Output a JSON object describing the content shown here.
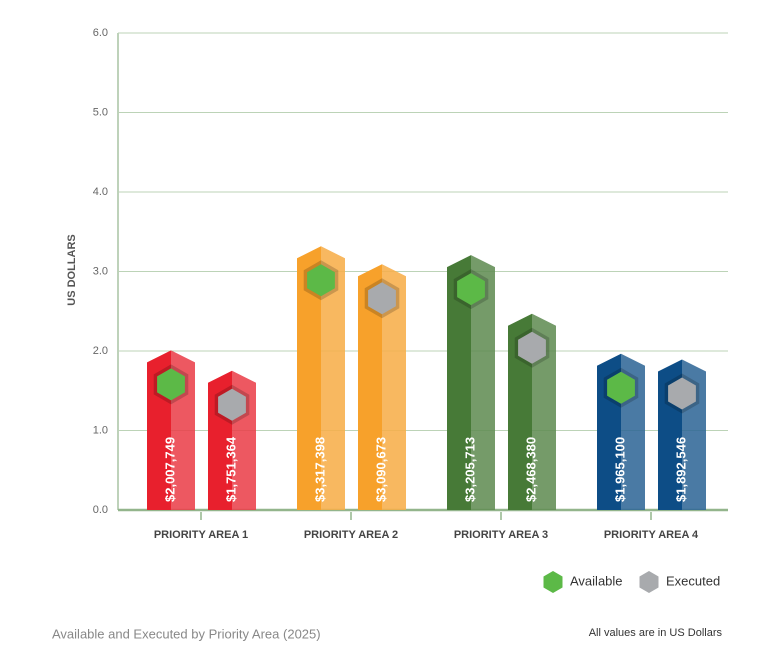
{
  "chart_data": {
    "type": "bar",
    "categories": [
      "PRIORITY AREA 1",
      "PRIORITY AREA 2",
      "PRIORITY AREA 3",
      "PRIORITY AREA 4"
    ],
    "category_colors": [
      "#e8202d",
      "#f7a12b",
      "#477a37",
      "#0d4d86"
    ],
    "series": [
      {
        "name": "Available",
        "color": "#5cb947",
        "values": [
          2.007749,
          3.317398,
          3.205713,
          1.9651
        ],
        "value_labels": [
          "$2,007,749",
          "$3,317,398",
          "$3,205,713",
          "$1,965,100"
        ]
      },
      {
        "name": "Executed",
        "color": "#a8aaad",
        "values": [
          1.751364,
          3.090673,
          2.46838,
          1.892546
        ],
        "value_labels": [
          "$1,751,364",
          "$3,090,673",
          "$2,468,380",
          "$1,892,546"
        ]
      }
    ],
    "y_label": "US DOLLARS",
    "ylim": [
      0,
      6
    ],
    "yticks": [
      {
        "value": 0,
        "label": "0.0"
      },
      {
        "value": 1,
        "label": "1.0"
      },
      {
        "value": 2,
        "label": "2.0"
      },
      {
        "value": 3,
        "label": "3.0"
      },
      {
        "value": 4,
        "label": "4.0"
      },
      {
        "value": 5,
        "label": "5.0"
      },
      {
        "value": 6,
        "label": "6.0"
      }
    ],
    "grid": true,
    "legend": "bottom-right",
    "caption": "Available and Executed by Priority Area (2025)",
    "note": "All values are in US Dollars"
  }
}
